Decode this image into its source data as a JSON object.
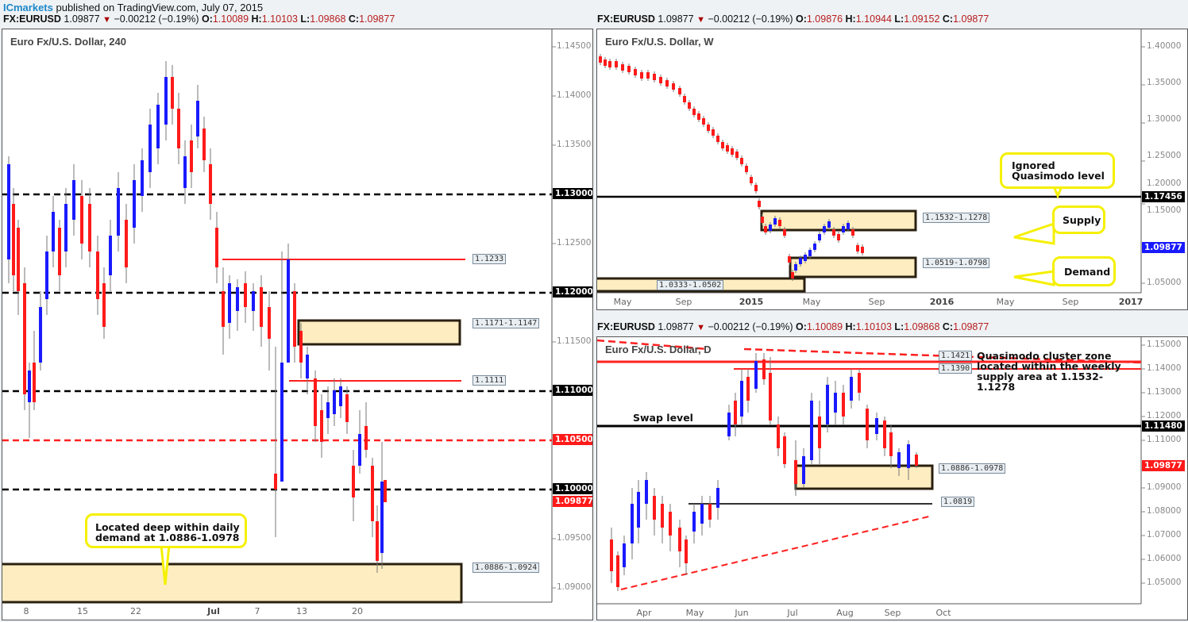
{
  "header": {
    "brand": "ICmarkets",
    "published": " published on TradingView.com, July 07, 2015"
  },
  "quotes": {
    "h4": {
      "symbol": "FX:EURUSD",
      "price": "1.09877",
      "change": "−0.00212 (−0.19%)",
      "o": "1.10089",
      "h": "1.10103",
      "l": "1.09868",
      "c": "1.09877"
    },
    "weekly": {
      "symbol": "FX:EURUSD",
      "price": "1.09877",
      "change": "−0.00212 (−0.19%)",
      "o": "1.09876",
      "h": "1.10944",
      "l": "1.09152",
      "c": "1.09877"
    },
    "daily": {
      "symbol": "FX:EURUSD",
      "price": "1.09877",
      "change": "−0.00212 (−0.19%)",
      "o": "1.10089",
      "h": "1.10103",
      "l": "1.09868",
      "c": "1.09877"
    }
  },
  "colors": {
    "up": "#1a1aff",
    "down": "#ff1a1a",
    "zone_fill": "#fdedc0",
    "zone_border": "#2a2010",
    "callout_border": "#f5f000",
    "res_red": "#ff2020",
    "level_black": "#000000"
  },
  "chart_data": [
    {
      "id": "h4",
      "type": "candlestick",
      "title": "Euro Fx/U.S. Dollar, 240",
      "ylim": [
        1.088,
        1.1465
      ],
      "yticks": [
        "1.14500",
        "1.14000",
        "1.13500",
        "1.13000",
        "1.12500",
        "1.12000",
        "1.11500",
        "1.11000",
        "1.10500",
        "1.10000",
        "1.09877",
        "1.09500",
        "1.09000"
      ],
      "xticks": [
        "8",
        "15",
        "22",
        "Jul",
        "7",
        "13",
        "20"
      ],
      "levels": [
        {
          "value": 1.13,
          "style": "dashed",
          "color": "#000000",
          "label": "1.13000"
        },
        {
          "value": 1.12,
          "style": "dashed",
          "color": "#000000",
          "label": "1.12000"
        },
        {
          "value": 1.11,
          "style": "dashed",
          "color": "#000000",
          "label": "1.11000"
        },
        {
          "value": 1.105,
          "style": "dashed",
          "color": "#ff2020",
          "label": "1.10500"
        },
        {
          "value": 1.1,
          "style": "dashed",
          "color": "#000000",
          "label": "1.10000"
        },
        {
          "value": 1.1233,
          "style": "solid",
          "color": "#ff2020",
          "label": "1.1233"
        },
        {
          "value": 1.1111,
          "style": "solid",
          "color": "#ff2020",
          "label": "1.1111"
        }
      ],
      "zones": [
        {
          "label": "1.1171-1.1147",
          "top": 1.1171,
          "bottom": 1.1147
        },
        {
          "label": "1.0886-1.0924",
          "top": 1.0924,
          "bottom": 1.0886
        }
      ],
      "last_price": "1.09877",
      "annotations": [
        "Located deep within daily demand at 1.0886-1.0978"
      ]
    },
    {
      "id": "weekly",
      "type": "candlestick",
      "title": "Euro Fx/U.S. Dollar, W",
      "ylim": [
        1.03,
        1.405
      ],
      "yticks": [
        "1.40000",
        "1.35000",
        "1.30000",
        "1.25000",
        "1.20000",
        "1.17456",
        "1.15000",
        "1.09877",
        "1.05000"
      ],
      "xticks": [
        "May",
        "Sep",
        "2015",
        "May",
        "Sep",
        "2016",
        "May",
        "Sep",
        "2017"
      ],
      "levels": [
        {
          "value": 1.17456,
          "style": "solid",
          "color": "#000000",
          "label": "1.17456"
        }
      ],
      "zones": [
        {
          "label": "1.1532-1.1278",
          "top": 1.1532,
          "bottom": 1.1278
        },
        {
          "label": "1.0519-1.0798",
          "top": 1.0798,
          "bottom": 1.0519
        },
        {
          "label": "1.0333-1.0502",
          "top": 1.0502,
          "bottom": 1.0333
        }
      ],
      "last_price": "1.09877",
      "annotations": [
        "Ignored Quasimodo level",
        "Supply",
        "Demand"
      ]
    },
    {
      "id": "daily",
      "type": "candlestick",
      "title": "Euro Fx/U.S. Dollar, D",
      "ylim": [
        1.044,
        1.152
      ],
      "yticks": [
        "1.15000",
        "1.14000",
        "1.13000",
        "1.12000",
        "1.11480",
        "1.11000",
        "1.09877",
        "1.09000",
        "1.08000",
        "1.07000",
        "1.06000",
        "1.05000"
      ],
      "xticks": [
        "Apr",
        "May",
        "Jun",
        "Jul",
        "Aug",
        "Sep",
        "Oct"
      ],
      "levels": [
        {
          "value": 1.1148,
          "style": "solid",
          "color": "#000000",
          "label": "1.11480"
        },
        {
          "value": 1.1421,
          "style": "solid",
          "color": "#ff2020",
          "label": "1.1421"
        },
        {
          "value": 1.139,
          "style": "solid",
          "color": "#ff2020",
          "label": "1.1390"
        },
        {
          "value": 1.0819,
          "style": "solid",
          "color": "#000000",
          "label": "1.0819"
        }
      ],
      "zones": [
        {
          "label": "1.0886-1.0978",
          "top": 1.0978,
          "bottom": 1.0886
        }
      ],
      "last_price": "1.09877",
      "annotations": [
        "Swap level",
        "Quasimodo cluster zone located within the weekly supply area at 1.1532-1.1278"
      ]
    }
  ],
  "labels": {
    "h4": {
      "title": "Euro Fx/U.S. Dollar, 240",
      "yticks": {
        "t1": "1.14500",
        "t2": "1.14000",
        "t3": "1.13500",
        "t4": "1.12500",
        "t5": "1.11500",
        "t6": "1.09500",
        "t7": "1.09000"
      },
      "ylabels": {
        "l1130": "1.13000",
        "l1120": "1.12000",
        "l1110": "1.11000",
        "l1105": "1.10500",
        "l1100": "1.10000",
        "last": "1.09877"
      },
      "x": {
        "a": "8",
        "b": "15",
        "c": "22",
        "d": "Jul",
        "e": "7",
        "f": "13",
        "g": "20"
      },
      "zones": {
        "z1": "1.1171-1.1147",
        "z2": "1.0886-1.0924",
        "r1": "1.1233",
        "r2": "1.1111"
      },
      "callout": "Located deep within daily demand at 1.0886-1.0978"
    },
    "weekly": {
      "title": "Euro Fx/U.S. Dollar, W",
      "yticks": {
        "t1": "1.40000",
        "t2": "1.35000",
        "t3": "1.30000",
        "t4": "1.25000",
        "t5": "1.20000",
        "t6": "1.15000",
        "t7": "1.05000"
      },
      "ylabels": {
        "qm": "1.17456",
        "last": "1.09877"
      },
      "x": {
        "a": "May",
        "b": "Sep",
        "c": "2015",
        "d": "May",
        "e": "Sep",
        "f": "2016",
        "g": "May",
        "h": "Sep",
        "i": "2017"
      },
      "zones": {
        "supply": "1.1532-1.1278",
        "demand": "1.0519-1.0798",
        "old": "1.0333-1.0502"
      },
      "callouts": {
        "qm": "Ignored Quasimodo level",
        "supply": "Supply",
        "demand": "Demand"
      }
    },
    "daily": {
      "title": "Euro Fx/U.S. Dollar, D",
      "yticks": {
        "t1": "1.15000",
        "t2": "1.14000",
        "t3": "1.13000",
        "t4": "1.12000",
        "t5": "1.11000",
        "t6": "1.09000",
        "t7": "1.08000",
        "t8": "1.07000",
        "t9": "1.06000",
        "t10": "1.05000"
      },
      "ylabels": {
        "swap": "1.11480",
        "last": "1.09877"
      },
      "x": {
        "a": "Apr",
        "b": "May",
        "c": "Jun",
        "d": "Jul",
        "e": "Aug",
        "f": "Sep",
        "g": "Oct"
      },
      "zones": {
        "demand": "1.0886-1.0978",
        "l1421": "1.1421",
        "l1390": "1.1390",
        "l1819": "1.0819"
      },
      "notes": {
        "swap": "Swap level",
        "qm": "Quasimodo cluster zone located within the weekly supply area at 1.1532-1.1278"
      }
    }
  }
}
